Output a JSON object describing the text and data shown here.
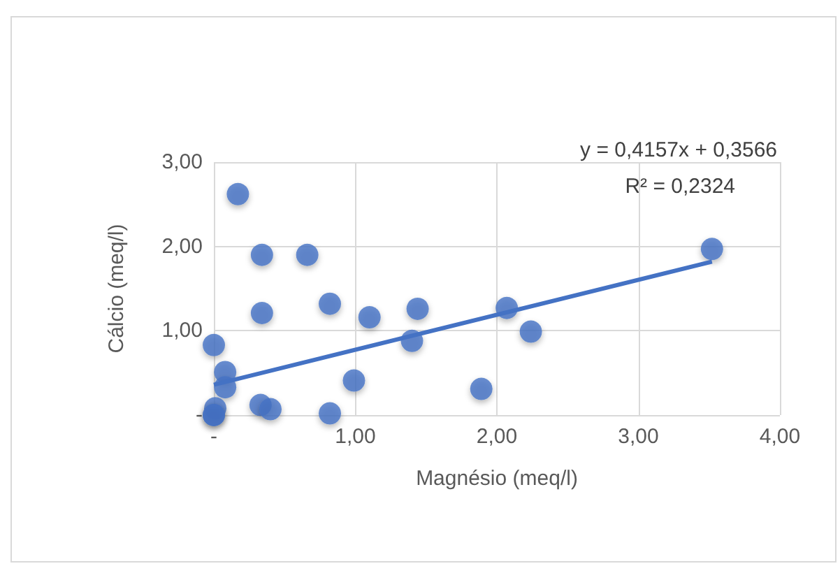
{
  "chart_data": {
    "type": "scatter",
    "xlabel": "Magnésio (meq/l)",
    "ylabel": "Cálcio (meq/l)",
    "annotations": [
      "y = 0,4157x + 0,3566",
      "R² = 0,2324"
    ],
    "series": [
      {
        "color": "#4472c4",
        "marker": "circle",
        "x": [
          0.17,
          0.34,
          0.66,
          0.34,
          0.82,
          1.1,
          1.44,
          1.4,
          2.07,
          2.24,
          3.52,
          0,
          0.08,
          0.08,
          0.99,
          1.89,
          0.33,
          0.4,
          0.82,
          0.01,
          0,
          0
        ],
        "values": [
          2.62,
          1.9,
          1.9,
          1.21,
          1.32,
          1.16,
          1.26,
          0.88,
          1.27,
          0.99,
          1.97,
          0.83,
          0.51,
          0.33,
          0.41,
          0.31,
          0.12,
          0.07,
          0.02,
          0.08,
          0,
          0
        ]
      },
      {
        "type": "line",
        "color": "#4472c4",
        "marker": "none",
        "x": [
          0,
          3.52
        ],
        "values": [
          0.36,
          1.82
        ]
      }
    ],
    "xlim": [
      0,
      4
    ],
    "xticks": [
      {
        "value": 0,
        "label": "-"
      },
      {
        "value": 1,
        "label": "1,00"
      },
      {
        "value": 2,
        "label": "2,00"
      },
      {
        "value": 3,
        "label": "3,00"
      },
      {
        "value": 4,
        "label": "4,00"
      }
    ],
    "ylim": [
      0,
      3
    ],
    "yticks": [
      {
        "value": 0,
        "label": "-"
      },
      {
        "value": 1,
        "label": "1,00"
      },
      {
        "value": 2,
        "label": "2,00"
      },
      {
        "value": 3,
        "label": "3,00"
      }
    ],
    "grid": true
  }
}
